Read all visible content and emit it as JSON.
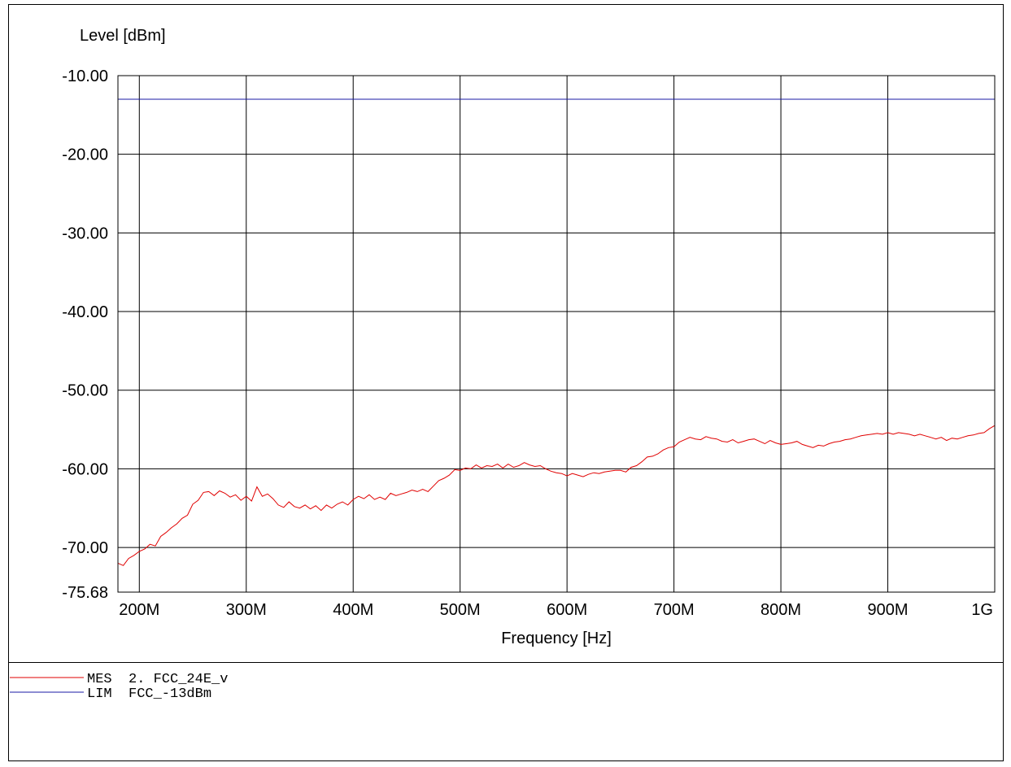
{
  "chart_data": {
    "type": "line",
    "ylabel": "Level [dBm]",
    "xlabel": "Frequency [Hz]",
    "ylim": [
      -75.68,
      -10.0
    ],
    "xlim": [
      180,
      1000
    ],
    "x_unit": "MHz",
    "y_ticks": [
      {
        "value": -10.0,
        "label": "-10.00"
      },
      {
        "value": -20.0,
        "label": "-20.00"
      },
      {
        "value": -30.0,
        "label": "-30.00"
      },
      {
        "value": -40.0,
        "label": "-40.00"
      },
      {
        "value": -50.0,
        "label": "-50.00"
      },
      {
        "value": -60.0,
        "label": "-60.00"
      },
      {
        "value": -70.0,
        "label": "-70.00"
      },
      {
        "value": -75.68,
        "label": "-75.68"
      }
    ],
    "x_ticks": [
      {
        "value": 200,
        "label": "200M"
      },
      {
        "value": 300,
        "label": "300M"
      },
      {
        "value": 400,
        "label": "400M"
      },
      {
        "value": 500,
        "label": "500M"
      },
      {
        "value": 600,
        "label": "600M"
      },
      {
        "value": 700,
        "label": "700M"
      },
      {
        "value": 800,
        "label": "800M"
      },
      {
        "value": 900,
        "label": "900M"
      },
      {
        "value": 1000,
        "label": "1G"
      }
    ],
    "grid": true,
    "series": [
      {
        "name": "MES 2. FCC_24E_v",
        "color": "#e00000",
        "x": [
          180,
          185,
          190,
          195,
          200,
          205,
          210,
          215,
          220,
          225,
          230,
          235,
          240,
          245,
          250,
          255,
          260,
          265,
          270,
          275,
          280,
          285,
          290,
          295,
          300,
          305,
          310,
          315,
          320,
          325,
          330,
          335,
          340,
          345,
          350,
          355,
          360,
          365,
          370,
          375,
          380,
          385,
          390,
          395,
          400,
          405,
          410,
          415,
          420,
          425,
          430,
          435,
          440,
          445,
          450,
          455,
          460,
          465,
          470,
          475,
          480,
          485,
          490,
          495,
          500,
          505,
          510,
          515,
          520,
          525,
          530,
          535,
          540,
          545,
          550,
          555,
          560,
          565,
          570,
          575,
          580,
          585,
          590,
          595,
          600,
          605,
          610,
          615,
          620,
          625,
          630,
          635,
          640,
          645,
          650,
          655,
          660,
          665,
          670,
          675,
          680,
          685,
          690,
          695,
          700,
          705,
          710,
          715,
          720,
          725,
          730,
          735,
          740,
          745,
          750,
          755,
          760,
          765,
          770,
          775,
          780,
          785,
          790,
          795,
          800,
          805,
          810,
          815,
          820,
          825,
          830,
          835,
          840,
          845,
          850,
          855,
          860,
          865,
          870,
          875,
          880,
          885,
          890,
          895,
          900,
          905,
          910,
          915,
          920,
          925,
          930,
          935,
          940,
          945,
          950,
          955,
          960,
          965,
          970,
          975,
          980,
          985,
          990,
          995,
          1000
        ],
        "y": [
          -72.0,
          -72.3,
          -71.4,
          -71.0,
          -70.5,
          -70.2,
          -69.6,
          -69.8,
          -68.6,
          -68.1,
          -67.5,
          -67.0,
          -66.3,
          -65.9,
          -64.5,
          -64.0,
          -63.0,
          -62.9,
          -63.4,
          -62.8,
          -63.1,
          -63.6,
          -63.3,
          -64.0,
          -63.5,
          -64.1,
          -62.3,
          -63.5,
          -63.2,
          -63.8,
          -64.6,
          -64.9,
          -64.2,
          -64.8,
          -65.0,
          -64.6,
          -65.1,
          -64.7,
          -65.3,
          -64.6,
          -65.0,
          -64.5,
          -64.2,
          -64.6,
          -63.9,
          -63.5,
          -63.8,
          -63.3,
          -63.9,
          -63.6,
          -63.9,
          -63.1,
          -63.4,
          -63.2,
          -63.0,
          -62.7,
          -62.9,
          -62.6,
          -62.9,
          -62.2,
          -61.5,
          -61.2,
          -60.8,
          -60.1,
          -60.2,
          -59.9,
          -60.0,
          -59.5,
          -59.9,
          -59.6,
          -59.7,
          -59.4,
          -59.9,
          -59.4,
          -59.8,
          -59.6,
          -59.2,
          -59.5,
          -59.7,
          -59.6,
          -60.0,
          -60.3,
          -60.5,
          -60.6,
          -60.9,
          -60.6,
          -60.8,
          -61.0,
          -60.7,
          -60.5,
          -60.6,
          -60.4,
          -60.3,
          -60.2,
          -60.2,
          -60.4,
          -59.8,
          -59.6,
          -59.1,
          -58.5,
          -58.4,
          -58.1,
          -57.6,
          -57.3,
          -57.2,
          -56.6,
          -56.3,
          -56.0,
          -56.2,
          -56.3,
          -55.9,
          -56.1,
          -56.2,
          -56.5,
          -56.6,
          -56.3,
          -56.7,
          -56.5,
          -56.3,
          -56.2,
          -56.5,
          -56.8,
          -56.4,
          -56.7,
          -56.9,
          -56.8,
          -56.7,
          -56.5,
          -56.9,
          -57.1,
          -57.3,
          -57.0,
          -57.1,
          -56.8,
          -56.6,
          -56.5,
          -56.3,
          -56.2,
          -56.0,
          -55.8,
          -55.7,
          -55.6,
          -55.5,
          -55.6,
          -55.4,
          -55.6,
          -55.4,
          -55.5,
          -55.6,
          -55.8,
          -55.6,
          -55.8,
          -56.0,
          -56.2,
          -56.0,
          -56.4,
          -56.1,
          -56.2,
          -56.0,
          -55.8,
          -55.7,
          -55.5,
          -55.4,
          -54.9,
          -54.5
        ]
      },
      {
        "name": "LIM FCC_-13dBm",
        "color": "#1a1aa6",
        "x": [
          180,
          1000
        ],
        "y": [
          -13.0,
          -13.0
        ]
      }
    ],
    "legend": {
      "placement": "bottom-left",
      "entries": [
        {
          "prefix": "MES",
          "label": "2. FCC_24E_v",
          "color": "#e00000"
        },
        {
          "prefix": "LIM",
          "label": "FCC_-13dBm",
          "color": "#1a1aa6"
        }
      ]
    }
  }
}
